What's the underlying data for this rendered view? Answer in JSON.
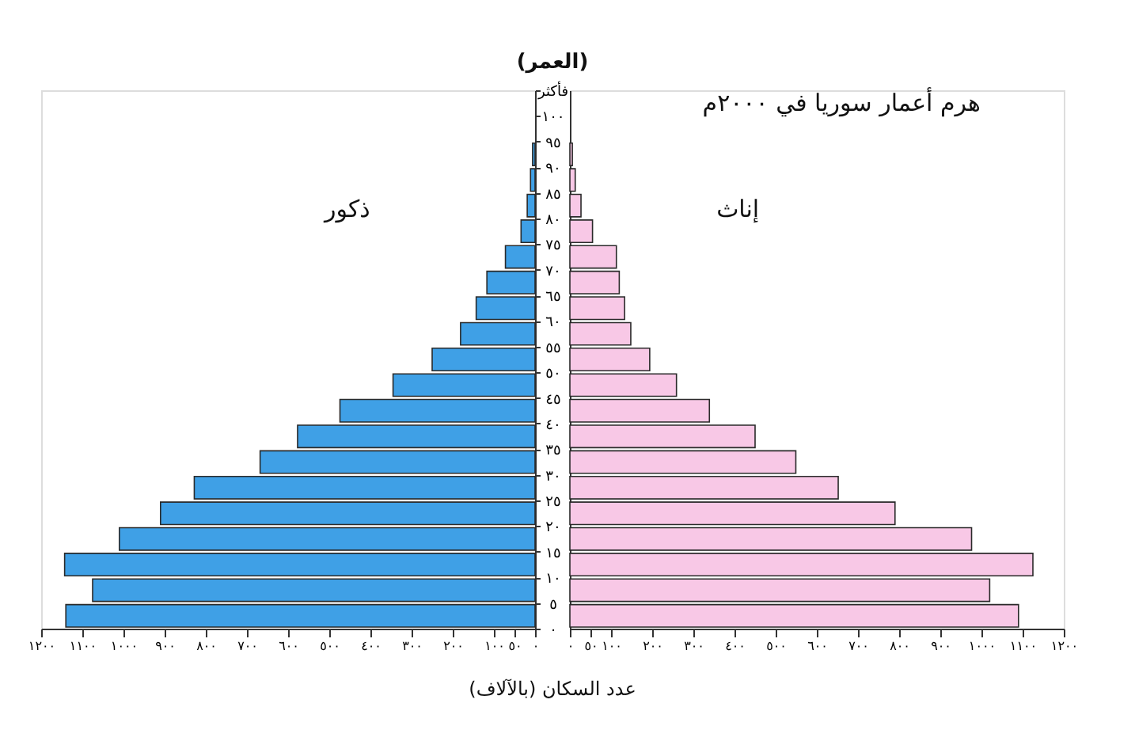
{
  "chart_data": [
    {
      "type": "bar",
      "orientation": "horizontal",
      "ylabel": "(العمر)",
      "xlabel": "عدد السكان (بالآلاف)",
      "x": [
        2.5,
        7.5,
        12.5,
        17.5,
        22.5,
        27.5,
        32.5,
        37.5,
        42.5,
        47.5,
        52.5,
        57.5,
        62.5,
        67.5,
        72.5,
        77.5,
        82.5,
        87.5,
        92.5
      ],
      "series": [
        {
          "name": "ذكور",
          "color": "#3fa0e6",
          "values": [
            1140,
            1075,
            1143,
            1010,
            910,
            828,
            668,
            577,
            474,
            345,
            250,
            181,
            143,
            117,
            72,
            34,
            19,
            11,
            6
          ]
        }
      ],
      "xlim": [
        1200,
        0
      ],
      "xticks": [
        {
          "value": 0,
          "label": "٠"
        },
        {
          "value": 50,
          "label": "٥٠"
        },
        {
          "value": 100,
          "label": "١٠٠"
        },
        {
          "value": 200,
          "label": "٢٠٠"
        },
        {
          "value": 300,
          "label": "٣٠٠"
        },
        {
          "value": 400,
          "label": "٤٠٠"
        },
        {
          "value": 500,
          "label": "٥٠٠"
        },
        {
          "value": 600,
          "label": "٦٠٠"
        },
        {
          "value": 700,
          "label": "٧٠٠"
        },
        {
          "value": 800,
          "label": "٨٠٠"
        },
        {
          "value": 900,
          "label": "٩٠٠"
        },
        {
          "value": 1000,
          "label": "١٠٠٠"
        },
        {
          "value": 1100,
          "label": "١١٠٠"
        },
        {
          "value": 1200,
          "label": "١٢٠٠"
        }
      ],
      "ylim": [
        0,
        105
      ],
      "yticks": [
        {
          "value": 0,
          "label": "٠"
        },
        {
          "value": 5,
          "label": "٥"
        },
        {
          "value": 10,
          "label": "١٠"
        },
        {
          "value": 15,
          "label": "١٥"
        },
        {
          "value": 20,
          "label": "٢٠"
        },
        {
          "value": 25,
          "label": "٢٥"
        },
        {
          "value": 30,
          "label": "٣٠"
        },
        {
          "value": 35,
          "label": "٣٥"
        },
        {
          "value": 40,
          "label": "٤٠"
        },
        {
          "value": 45,
          "label": "٤٥"
        },
        {
          "value": 50,
          "label": "٥٠"
        },
        {
          "value": 55,
          "label": "٥٥"
        },
        {
          "value": 60,
          "label": "٦٠"
        },
        {
          "value": 65,
          "label": "٦٥"
        },
        {
          "value": 70,
          "label": "٧٠"
        },
        {
          "value": 75,
          "label": "٧٥"
        },
        {
          "value": 80,
          "label": "٨٠"
        },
        {
          "value": 85,
          "label": "٨٥"
        },
        {
          "value": 90,
          "label": "٩٠"
        },
        {
          "value": 95,
          "label": "٩٥"
        },
        {
          "value": 100,
          "label": "١٠٠"
        },
        {
          "value": 105,
          "label": "فأكثر"
        }
      ],
      "legend": false,
      "grid": false
    },
    {
      "type": "bar",
      "orientation": "horizontal",
      "title": "هرم أعمار سوريا في ٢٠٠٠م",
      "x": [
        2.5,
        7.5,
        12.5,
        17.5,
        22.5,
        27.5,
        32.5,
        37.5,
        42.5,
        47.5,
        52.5,
        57.5,
        62.5,
        67.5,
        72.5,
        77.5,
        82.5,
        87.5,
        92.5
      ],
      "series": [
        {
          "name": "إناث",
          "color": "#f8c8e6",
          "values": [
            1090,
            1020,
            1125,
            976,
            790,
            652,
            549,
            450,
            339,
            259,
            194,
            148,
            133,
            120,
            113,
            55,
            27,
            13,
            6
          ]
        }
      ],
      "xlim": [
        0,
        1200
      ],
      "xticks": [
        {
          "value": 0,
          "label": "٠"
        },
        {
          "value": 50,
          "label": "٥٠"
        },
        {
          "value": 100,
          "label": "١٠٠"
        },
        {
          "value": 200,
          "label": "٢٠٠"
        },
        {
          "value": 300,
          "label": "٣٠٠"
        },
        {
          "value": 400,
          "label": "٤٠٠"
        },
        {
          "value": 500,
          "label": "٥٠٠"
        },
        {
          "value": 600,
          "label": "٦٠٠"
        },
        {
          "value": 700,
          "label": "٧٠٠"
        },
        {
          "value": 800,
          "label": "٨٠٠"
        },
        {
          "value": 900,
          "label": "٩٠٠"
        },
        {
          "value": 1000,
          "label": "١٠٠٠"
        },
        {
          "value": 1100,
          "label": "١١٠٠"
        },
        {
          "value": 1200,
          "label": "١٢٠٠"
        }
      ],
      "ylim": [
        0,
        105
      ],
      "tick_labels": "x",
      "legend": false,
      "grid": false
    }
  ]
}
